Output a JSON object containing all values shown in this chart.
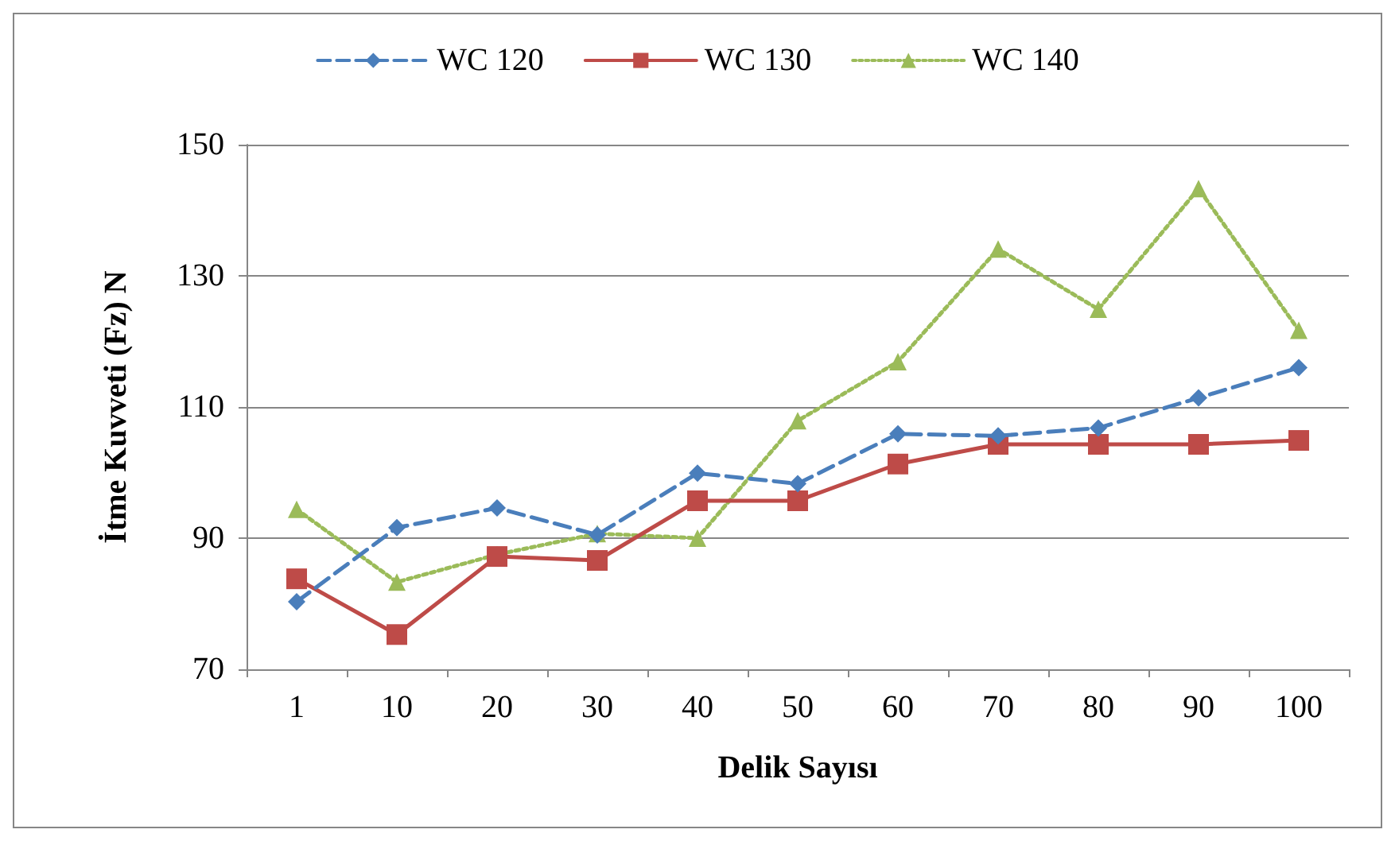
{
  "chart_data": {
    "type": "line",
    "xlabel": "Delik Sayısı",
    "ylabel": "İtme Kuvveti (Fz) N",
    "categories": [
      "1",
      "10",
      "20",
      "30",
      "40",
      "50",
      "60",
      "70",
      "80",
      "90",
      "100"
    ],
    "series": [
      {
        "name": "WC 120",
        "color": "#4a7ebb",
        "marker": "diamond",
        "line_style": "dashed",
        "values": [
          80.3,
          91.6,
          94.6,
          90.5,
          99.9,
          98.3,
          105.9,
          105.6,
          106.8,
          111.4,
          116
        ]
      },
      {
        "name": "WC 130",
        "color": "#be4b48",
        "marker": "square",
        "line_style": "solid",
        "values": [
          83.8,
          75.3,
          87.2,
          86.6,
          95.7,
          95.7,
          101.3,
          104.3,
          104.3,
          104.3,
          104.9
        ]
      },
      {
        "name": "WC 140",
        "color": "#9bbb59",
        "marker": "triangle",
        "line_style": "dotted",
        "values": [
          94.4,
          83.3,
          87.5,
          90.7,
          90,
          107.9,
          116.9,
          134.1,
          124.9,
          143.3,
          121.7
        ]
      }
    ],
    "ylim": [
      70,
      150
    ],
    "yticks": [
      70,
      90,
      110,
      130,
      150
    ],
    "grid": "y",
    "legend": "top"
  }
}
